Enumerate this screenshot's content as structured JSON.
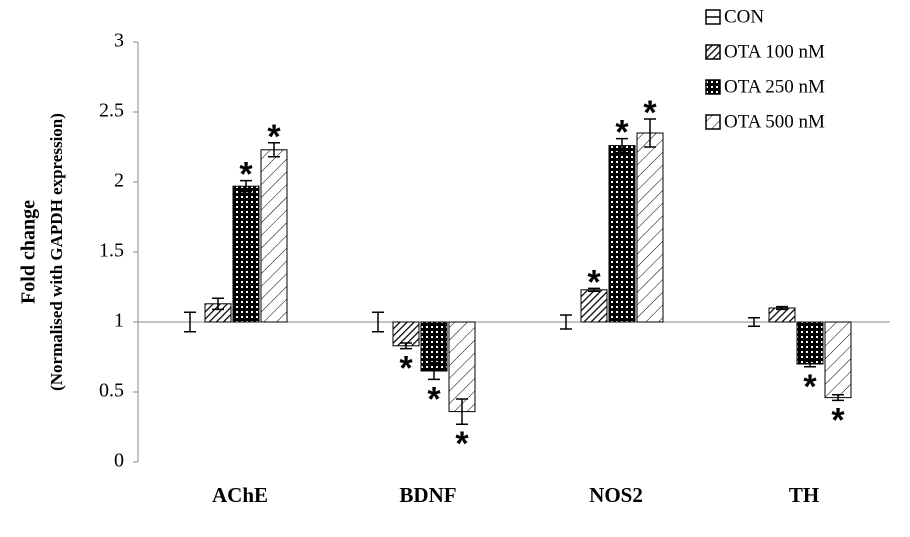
{
  "chart_data": {
    "type": "bar",
    "ylabel": [
      "Fold change",
      "(Normalised with GAPDH expression)"
    ],
    "categories": [
      "AChE",
      "BDNF",
      "NOS2",
      "TH"
    ],
    "series": [
      {
        "name": "CON",
        "color": "#000000",
        "pattern": "none",
        "values": [
          1.0,
          1.0,
          1.0,
          1.0
        ],
        "errors": [
          0.07,
          0.07,
          0.05,
          0.03
        ],
        "significant": [
          false,
          false,
          false,
          false
        ]
      },
      {
        "name": "OTA 100 nM",
        "color": "#000000",
        "pattern": "diagonal",
        "values": [
          1.13,
          0.83,
          1.23,
          1.1
        ],
        "errors": [
          0.04,
          0.02,
          0.01,
          0.01
        ],
        "significant": [
          false,
          true,
          true,
          false
        ]
      },
      {
        "name": "OTA 250 nM",
        "color": "#000000",
        "pattern": "checker",
        "values": [
          1.97,
          0.65,
          2.26,
          0.7
        ],
        "errors": [
          0.04,
          0.06,
          0.05,
          0.02
        ],
        "significant": [
          true,
          true,
          true,
          true
        ]
      },
      {
        "name": "OTA 500 nM",
        "color": "#000000",
        "pattern": "sparse-diagonal",
        "values": [
          2.23,
          0.36,
          2.35,
          0.46
        ],
        "errors": [
          0.05,
          0.09,
          0.1,
          0.02
        ],
        "significant": [
          true,
          true,
          true,
          true
        ]
      }
    ],
    "significance_marker": "*",
    "baseline": 1,
    "ylim": [
      0,
      3
    ],
    "yticks": [
      0,
      0.5,
      1,
      1.5,
      2,
      2.5,
      3
    ],
    "legend": "top-right",
    "grid": false
  }
}
